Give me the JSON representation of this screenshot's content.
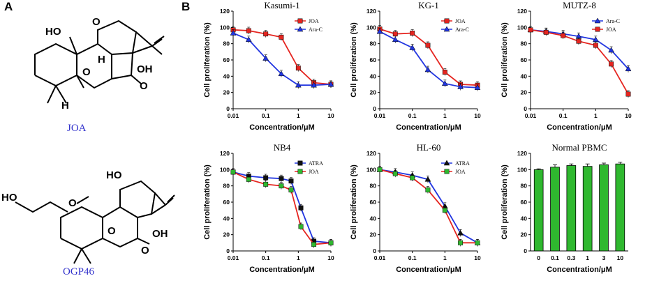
{
  "panel_labels": {
    "a": "A",
    "b": "B"
  },
  "molecules": [
    {
      "name": "JOA",
      "atoms": [
        "HO",
        "O",
        "H",
        "O",
        "OH",
        "O",
        "H"
      ]
    },
    {
      "name": "OGP46",
      "atoms": [
        "HO",
        "O",
        "HO",
        "O",
        "OH",
        "O"
      ]
    }
  ],
  "colors": {
    "red": "#e52520",
    "blue": "#2135e0",
    "black": "#111111",
    "green": "#2fb82f"
  },
  "chart_data": [
    {
      "type": "line",
      "title": "Kasumi-1",
      "xlabel": "Concentration/μM",
      "ylabel": "Cell proliferation (%)",
      "xscale": "log",
      "xlim": [
        0.01,
        10
      ],
      "ylim": [
        0,
        120
      ],
      "yticks": [
        0,
        20,
        40,
        60,
        80,
        100,
        120
      ],
      "xticks": [
        0.01,
        0.1,
        1,
        10
      ],
      "xtick_labels": [
        "0.01",
        "0.1",
        "1",
        "10"
      ],
      "legend_position": "top-right",
      "series": [
        {
          "name": "JOA",
          "color": "red",
          "marker": "square",
          "x": [
            0.01,
            0.03,
            0.1,
            0.3,
            1,
            3,
            10
          ],
          "y": [
            97,
            96,
            92,
            88,
            50,
            32,
            30
          ]
        },
        {
          "name": "Ara-C",
          "color": "blue",
          "marker": "triangle",
          "x": [
            0.01,
            0.03,
            0.1,
            0.3,
            1,
            3,
            10
          ],
          "y": [
            93,
            85,
            62,
            43,
            29,
            29,
            30
          ]
        }
      ]
    },
    {
      "type": "line",
      "title": "KG-1",
      "xlabel": "Concentration/μM",
      "ylabel": "Cell proliferation (%)",
      "xscale": "log",
      "xlim": [
        0.01,
        10
      ],
      "ylim": [
        0,
        120
      ],
      "yticks": [
        0,
        20,
        40,
        60,
        80,
        100,
        120
      ],
      "xticks": [
        0.01,
        0.1,
        1,
        10
      ],
      "xtick_labels": [
        "0.01",
        "0.1",
        "1",
        "10"
      ],
      "legend_position": "top-right",
      "series": [
        {
          "name": "JOA",
          "color": "red",
          "marker": "square",
          "x": [
            0.01,
            0.03,
            0.1,
            0.3,
            1,
            3,
            10
          ],
          "y": [
            98,
            92,
            93,
            78,
            45,
            30,
            29
          ]
        },
        {
          "name": "Ara-C",
          "color": "blue",
          "marker": "triangle",
          "x": [
            0.01,
            0.03,
            0.1,
            0.3,
            1,
            3,
            10
          ],
          "y": [
            95,
            85,
            75,
            48,
            31,
            27,
            26
          ]
        }
      ]
    },
    {
      "type": "line",
      "title": "MUTZ-8",
      "xlabel": "Concentration/μM",
      "ylabel": "Cell proliferation (%)",
      "xscale": "log",
      "xlim": [
        0.01,
        10
      ],
      "ylim": [
        0,
        120
      ],
      "yticks": [
        0,
        20,
        40,
        60,
        80,
        100,
        120
      ],
      "xticks": [
        0.01,
        0.1,
        1,
        10
      ],
      "xtick_labels": [
        "0.01",
        "0.1",
        "1",
        "10"
      ],
      "legend_position": "top-right",
      "series": [
        {
          "name": "Ara-C",
          "color": "blue",
          "marker": "triangle",
          "x": [
            0.01,
            0.03,
            0.1,
            0.3,
            1,
            3,
            10
          ],
          "y": [
            97,
            95,
            92,
            89,
            85,
            72,
            49
          ]
        },
        {
          "name": "JOA",
          "color": "red",
          "marker": "square",
          "x": [
            0.01,
            0.03,
            0.1,
            0.3,
            1,
            3,
            10
          ],
          "y": [
            97,
            94,
            90,
            83,
            78,
            55,
            18
          ]
        }
      ]
    },
    {
      "type": "line",
      "title": "NB4",
      "xlabel": "Concentration/μM",
      "ylabel": "Cell proliferation (%)",
      "xscale": "log",
      "xlim": [
        0.01,
        10
      ],
      "ylim": [
        0,
        120
      ],
      "yticks": [
        0,
        20,
        40,
        60,
        80,
        100,
        120
      ],
      "xticks": [
        0.01,
        0.1,
        1,
        10
      ],
      "xtick_labels": [
        "0.01",
        "0.1",
        "1",
        "10"
      ],
      "legend_position": "top-right",
      "series": [
        {
          "name": "ATRA",
          "color": "black",
          "line_color": "blue",
          "marker": "square",
          "x": [
            0.01,
            0.03,
            0.1,
            0.3,
            0.6,
            1.2,
            3,
            10
          ],
          "y": [
            97,
            92,
            90,
            89,
            86,
            53,
            12,
            10
          ]
        },
        {
          "name": "JOA",
          "color": "green",
          "line_color": "red",
          "marker": "square",
          "x": [
            0.01,
            0.03,
            0.1,
            0.3,
            0.6,
            1.2,
            3,
            10
          ],
          "y": [
            97,
            88,
            82,
            80,
            75,
            30,
            8,
            10
          ]
        }
      ]
    },
    {
      "type": "line",
      "title": "HL-60",
      "xlabel": "Concentration/μM",
      "ylabel": "Cell proliferation (%)",
      "xscale": "log",
      "xlim": [
        0.01,
        10
      ],
      "ylim": [
        0,
        120
      ],
      "yticks": [
        0,
        20,
        40,
        60,
        80,
        100,
        120
      ],
      "xticks": [
        0.01,
        0.1,
        1,
        10
      ],
      "xtick_labels": [
        "0.01",
        "0.1",
        "1",
        "10"
      ],
      "legend_position": "top-right",
      "series": [
        {
          "name": "ATRA",
          "color": "black",
          "line_color": "blue",
          "marker": "triangle",
          "x": [
            0.01,
            0.03,
            0.1,
            0.3,
            1,
            3,
            10
          ],
          "y": [
            100,
            97,
            93,
            88,
            55,
            22,
            10
          ]
        },
        {
          "name": "JOA",
          "color": "green",
          "line_color": "red",
          "marker": "square",
          "x": [
            0.01,
            0.03,
            0.1,
            0.3,
            1,
            3,
            10
          ],
          "y": [
            100,
            95,
            90,
            75,
            50,
            10,
            10
          ]
        }
      ]
    },
    {
      "type": "bar",
      "title": "Normal PBMC",
      "xlabel": "Concentration/μM",
      "ylabel": "Cell proliferation (%)",
      "categories": [
        "0",
        "0.1",
        "0.3",
        "1",
        "3",
        "10"
      ],
      "values": [
        100,
        103,
        105,
        104,
        106,
        107
      ],
      "errors": [
        1,
        3,
        2,
        3,
        2,
        2
      ],
      "ylim": [
        0,
        120
      ],
      "yticks": [
        0,
        20,
        40,
        60,
        80,
        100,
        120
      ],
      "color": "green"
    }
  ]
}
